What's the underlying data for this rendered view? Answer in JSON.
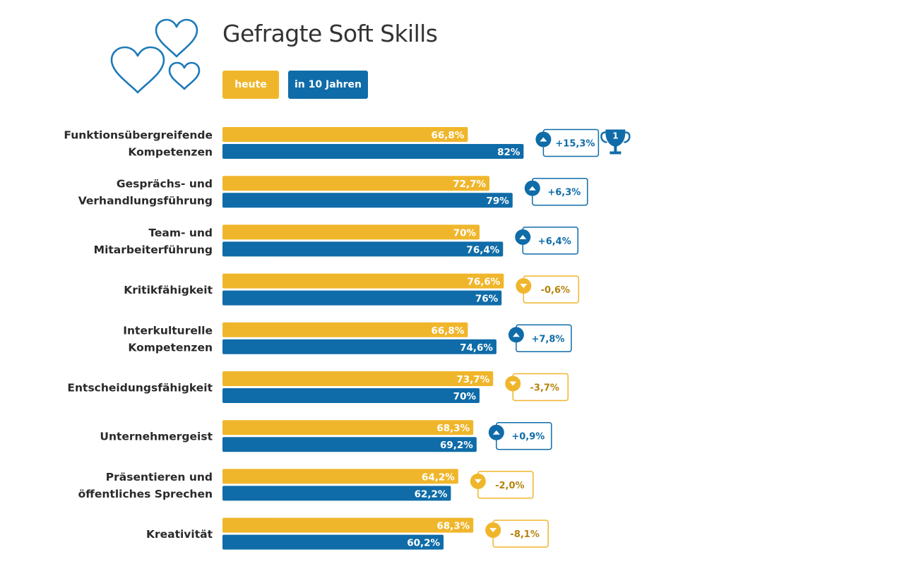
{
  "colors": {
    "today": "#f0b62b",
    "future": "#0f6ca8",
    "positive": "#0f6ca8",
    "negative": "#f0b62b",
    "negative_text": "#b5830f",
    "text": "#2a2a2a"
  },
  "icons": [
    "hearts-icon",
    "triangle-up-icon",
    "triangle-down-icon",
    "trophy-icon"
  ],
  "chart_data": {
    "type": "bar",
    "orientation": "horizontal",
    "title": "Gefragte Soft Skills",
    "legend": {
      "today": "heute",
      "future": "in 10 Jahren"
    },
    "categories": [
      [
        "Funktionsübergreifende",
        "Kompetenzen"
      ],
      [
        "Gesprächs- und",
        "Verhandlungsführung"
      ],
      [
        "Team- und",
        "Mitarbeiterführung"
      ],
      [
        "Kritikfähigkeit"
      ],
      [
        "Interkulturelle",
        "Kompetenzen"
      ],
      [
        "Entscheidungsfähigkeit"
      ],
      [
        "Unternehmergeist"
      ],
      [
        "Präsentieren und",
        "öffentliches Sprechen"
      ],
      [
        "Kreativität"
      ]
    ],
    "series": [
      {
        "name": "heute",
        "values": [
          66.8,
          72.7,
          70,
          76.6,
          66.8,
          73.7,
          68.3,
          64.2,
          68.3
        ],
        "labels": [
          "66,8%",
          "72,7%",
          "70%",
          "76,6%",
          "66,8%",
          "73,7%",
          "68,3%",
          "64,2%",
          "68,3%"
        ]
      },
      {
        "name": "in 10 Jahren",
        "values": [
          82,
          79,
          76.4,
          76,
          74.6,
          70,
          69.2,
          62.2,
          60.2
        ],
        "labels": [
          "82%",
          "79%",
          "76,4%",
          "76%",
          "74,6%",
          "70%",
          "69,2%",
          "62,2%",
          "60,2%"
        ]
      }
    ],
    "deltas": [
      {
        "value": 15.3,
        "label": "+15,3%",
        "rank": "1"
      },
      {
        "value": 6.3,
        "label": "+6,3%"
      },
      {
        "value": 6.4,
        "label": "+6,4%"
      },
      {
        "value": -0.6,
        "label": "-0,6%"
      },
      {
        "value": 7.8,
        "label": "+7,8%"
      },
      {
        "value": -3.7,
        "label": "-3,7%"
      },
      {
        "value": 0.9,
        "label": "+0,9%"
      },
      {
        "value": -2.0,
        "label": "-2,0%"
      },
      {
        "value": -8.1,
        "label": "-8,1%"
      }
    ]
  }
}
